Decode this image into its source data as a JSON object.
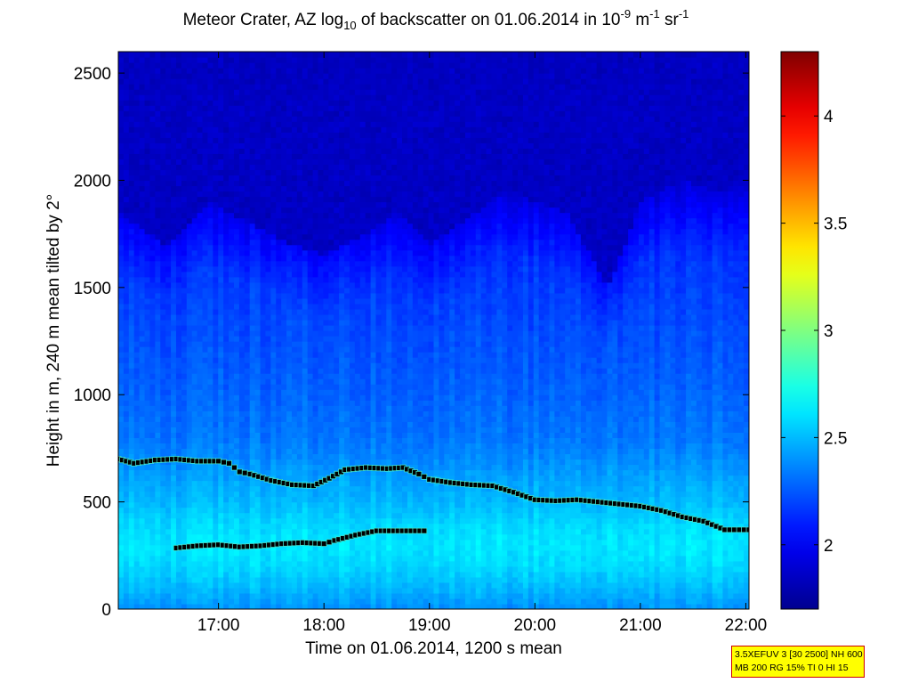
{
  "title": {
    "pre": "Meteor Crater, AZ log",
    "sub": "10",
    "mid": " of backscatter on 01.06.2014 in 10",
    "sup1": "-9",
    "mid2": " m",
    "sup2": "-1",
    "mid3": " sr",
    "sup3": "-1"
  },
  "info_box": {
    "line1": "3.5XEFUV 3 [30 2500] NH 600",
    "line2": "MB 200 RG 15% TI 0 HI 15"
  },
  "colors": {
    "jet": [
      "#00008f",
      "#0000ff",
      "#00ffff",
      "#ffff00",
      "#ff0000",
      "#800000"
    ],
    "layer_marker_fill": "#000000",
    "layer_marker_edge": "#40e0d0",
    "info_bg": "#ffff00",
    "info_border": "#cc0000"
  },
  "chart_data": {
    "type": "heatmap",
    "title": "Meteor Crater, AZ log10 of backscatter on 01.06.2014 in 10^-9 m^-1 sr^-1",
    "xlabel": "Time on 01.06.2014, 1200 s mean",
    "ylabel": "Height in m, 240 m mean tilted by 2°",
    "x_range_hours": [
      16.05,
      22.03
    ],
    "x_ticks": [
      17,
      18,
      19,
      20,
      21,
      22
    ],
    "x_tick_labels": [
      "17:00",
      "18:00",
      "19:00",
      "20:00",
      "21:00",
      "22:00"
    ],
    "ylim": [
      0,
      2600
    ],
    "y_ticks": [
      0,
      500,
      1000,
      1500,
      2000,
      2500
    ],
    "y_tick_labels": [
      "0",
      "500",
      "1000",
      "1500",
      "2000",
      "2500"
    ],
    "colorbar": {
      "range": [
        1.7,
        4.3
      ],
      "ticks": [
        2,
        2.5,
        3,
        3.5,
        4
      ],
      "tick_labels": [
        "2",
        "2.5",
        "3",
        "3.5",
        "4"
      ],
      "colormap": "jet"
    },
    "field_profile": {
      "heights": [
        0,
        100,
        200,
        300,
        400,
        500,
        600,
        700,
        800,
        1000,
        1200,
        1400,
        1600,
        1800,
        2000,
        2200,
        2600
      ],
      "values": [
        2.4,
        2.5,
        2.58,
        2.62,
        2.58,
        2.5,
        2.45,
        2.38,
        2.33,
        2.28,
        2.24,
        2.2,
        2.16,
        2.1,
        2.02,
        1.92,
        1.85
      ]
    },
    "aerosol_top": {
      "time": [
        16.05,
        16.5,
        16.9,
        17.3,
        17.7,
        18.0,
        18.4,
        18.7,
        19.0,
        19.3,
        19.7,
        20.0,
        20.3,
        20.7,
        21.0,
        21.4,
        21.8,
        22.03
      ],
      "height": [
        1850,
        1700,
        1900,
        1800,
        1700,
        1650,
        1750,
        1850,
        1700,
        1800,
        1950,
        1900,
        1850,
        1500,
        1900,
        2000,
        1950,
        2050
      ]
    },
    "series": [
      {
        "time": [
          16.05,
          16.2,
          16.4,
          16.6,
          16.8,
          17.0,
          17.1,
          17.2,
          17.3,
          17.5,
          17.7,
          17.9,
          18.05,
          18.2,
          18.4,
          18.6,
          18.75,
          18.9,
          19.0,
          19.2,
          19.4,
          19.6,
          19.8,
          20.0,
          20.2,
          20.4,
          20.6,
          20.8,
          21.0,
          21.2,
          21.4,
          21.6,
          21.8,
          22.03
        ],
        "height": [
          700,
          680,
          695,
          700,
          690,
          690,
          680,
          640,
          630,
          600,
          580,
          575,
          610,
          650,
          660,
          655,
          660,
          630,
          605,
          590,
          580,
          575,
          545,
          510,
          505,
          510,
          500,
          490,
          480,
          460,
          430,
          410,
          370,
          370
        ]
      },
      {
        "time": [
          16.6,
          16.8,
          17.0,
          17.2,
          17.4,
          17.6,
          17.8,
          18.0,
          18.1,
          18.3,
          18.5,
          18.7,
          18.95
        ],
        "height": [
          285,
          295,
          300,
          290,
          295,
          305,
          310,
          305,
          320,
          345,
          365,
          365,
          365
        ]
      }
    ]
  }
}
